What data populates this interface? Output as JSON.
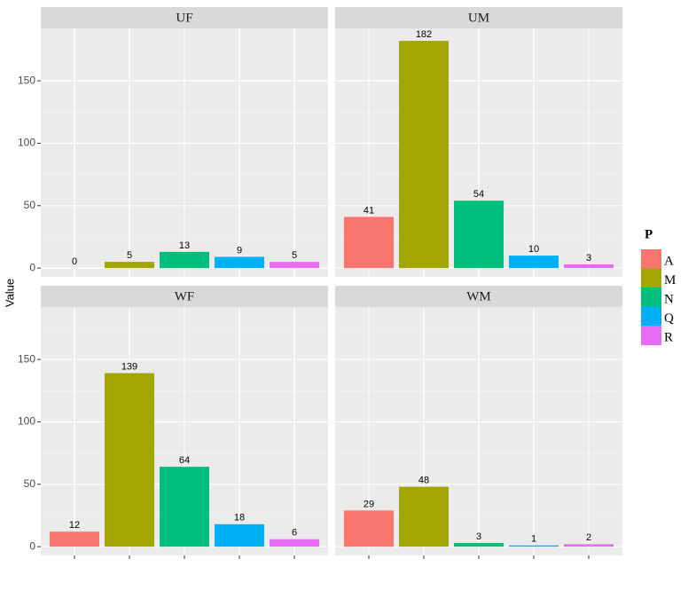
{
  "y_label": "Value",
  "legend": {
    "title": "P",
    "names": [
      "A",
      "M",
      "N",
      "Q",
      "R"
    ],
    "colors": [
      "#f8766d",
      "#a3a500",
      "#00bf7d",
      "#00b0f6",
      "#e76bf3"
    ]
  },
  "chart_data": [
    {
      "type": "bar",
      "title": "UF",
      "values": [
        0,
        5,
        13,
        9,
        5
      ],
      "ylim": [
        -7,
        192
      ],
      "yticks": [
        0,
        50,
        100,
        150
      ],
      "minor_yticks": [
        25,
        75,
        125,
        175
      ],
      "grid": true
    },
    {
      "type": "bar",
      "title": "UM",
      "values": [
        41,
        182,
        54,
        10,
        3
      ],
      "ylim": [
        -7,
        192
      ],
      "yticks": [
        0,
        50,
        100,
        150
      ],
      "minor_yticks": [
        25,
        75,
        125,
        175
      ],
      "grid": true
    },
    {
      "type": "bar",
      "title": "WF",
      "values": [
        12,
        139,
        64,
        18,
        6
      ],
      "ylim": [
        -7,
        192
      ],
      "yticks": [
        0,
        50,
        100,
        150
      ],
      "minor_yticks": [
        25,
        75,
        125,
        175
      ],
      "grid": true
    },
    {
      "type": "bar",
      "title": "WM",
      "values": [
        29,
        48,
        3,
        1,
        2
      ],
      "ylim": [
        -7,
        192
      ],
      "yticks": [
        0,
        50,
        100,
        150
      ],
      "minor_yticks": [
        25,
        75,
        125,
        175
      ],
      "grid": true
    }
  ]
}
